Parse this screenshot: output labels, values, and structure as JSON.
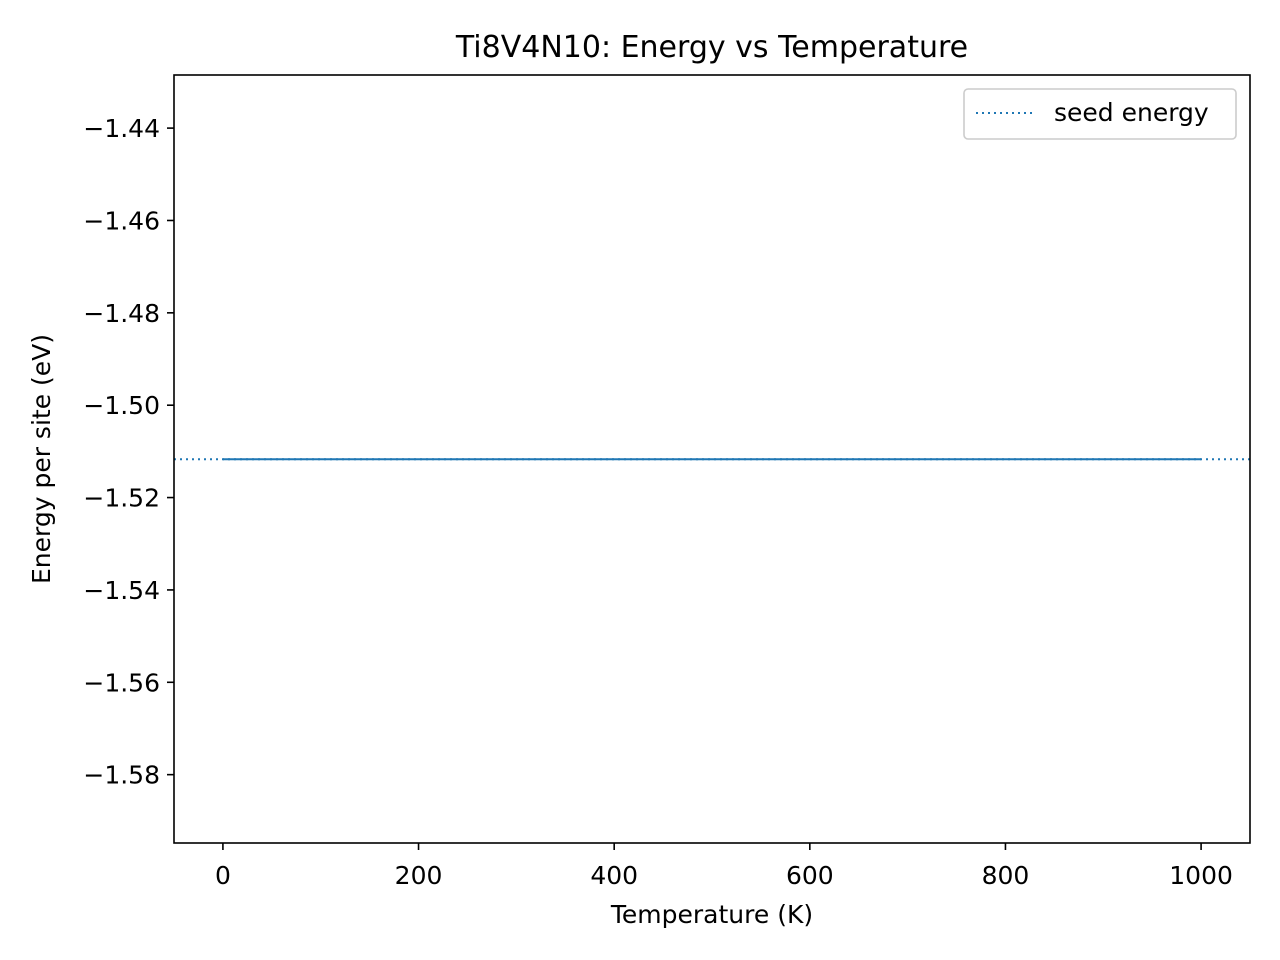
{
  "chart_data": {
    "type": "line",
    "title": "Ti8V4N10: Energy vs Temperature",
    "xlabel": "Temperature (K)",
    "ylabel": "Energy per site (eV)",
    "xlim": [
      -50,
      1050
    ],
    "ylim": [
      -1.5948,
      -1.4285
    ],
    "xticks": [
      0,
      200,
      400,
      600,
      800,
      1000
    ],
    "xtick_labels": [
      "0",
      "200",
      "400",
      "600",
      "800",
      "1000"
    ],
    "yticks": [
      -1.58,
      -1.56,
      -1.54,
      -1.52,
      -1.5,
      -1.48,
      -1.46,
      -1.44
    ],
    "ytick_labels": [
      "−1.58",
      "−1.56",
      "−1.54",
      "−1.52",
      "−1.50",
      "−1.48",
      "−1.46",
      "−1.44"
    ],
    "grid": false,
    "legend": {
      "placement": "top-right",
      "entries": [
        "seed energy"
      ]
    },
    "series": [
      {
        "values_x": [
          0,
          1000
        ],
        "values": [
          -1.5117,
          -1.5117
        ],
        "color": "#1f77b4",
        "style": "solid"
      }
    ],
    "reference_lines": [
      {
        "name": "seed energy",
        "y": -1.5117,
        "color": "#1f77b4",
        "style": "dotted"
      }
    ]
  }
}
